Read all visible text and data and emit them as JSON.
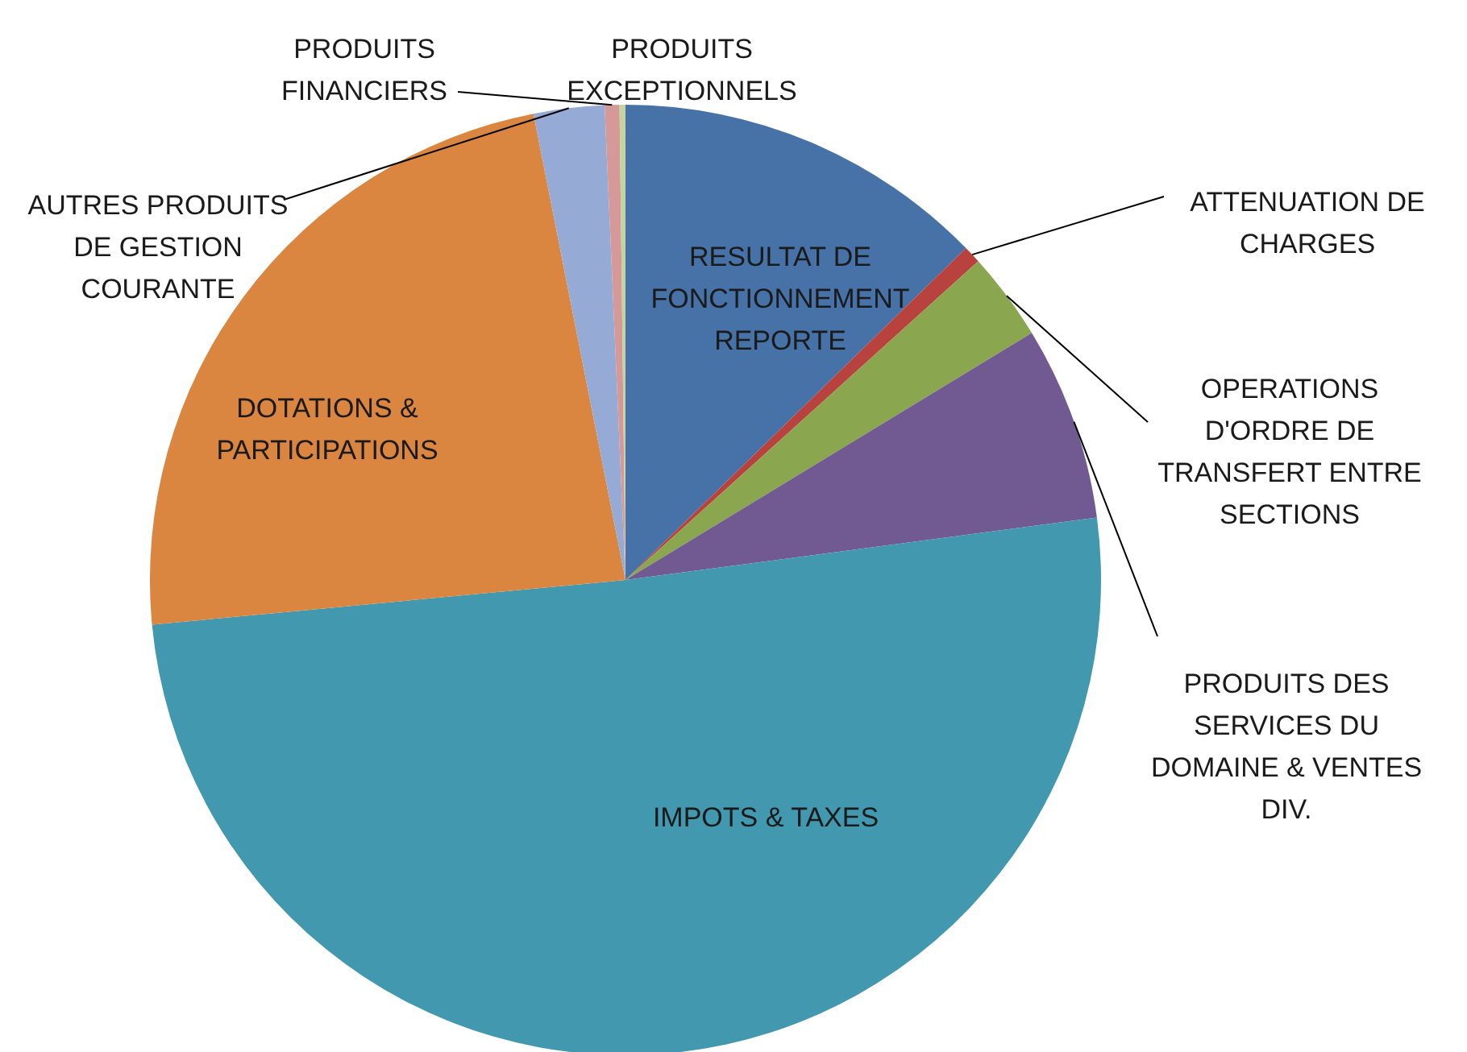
{
  "chart_data": {
    "type": "pie",
    "categories": [
      "RESULTAT DE FONCTIONNEMENT REPORTE",
      "ATTENUATION DE CHARGES",
      "OPERATIONS D'ORDRE DE TRANSFERT ENTRE SECTIONS",
      "PRODUITS DES SERVICES DU DOMAINE & VENTES DIV.",
      "IMPOTS & TAXES",
      "DOTATIONS & PARTICIPATIONS",
      "AUTRES PRODUITS DE GESTION COURANTE",
      "PRODUITS FINANCIERS",
      "PRODUITS EXCEPTIONNELS"
    ],
    "values": [
      12.7,
      0.6,
      3.0,
      6.6,
      50.6,
      23.4,
      2.4,
      0.5,
      0.2
    ],
    "colors": [
      "#4672a8",
      "#b8433e",
      "#8aa64e",
      "#705a91",
      "#4198af",
      "#da8540",
      "#95abd5",
      "#d6999a",
      "#c4d49e"
    ]
  }
}
